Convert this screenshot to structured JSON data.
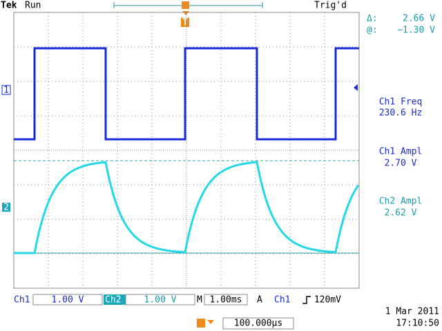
{
  "header": {
    "brand": "Tek",
    "run_state": "Run",
    "trigger_state": "Trig'd",
    "trigger_marker": "T"
  },
  "cursor_readout": {
    "delta_label": "Δ:",
    "delta_value": "2.66 V",
    "at_label": "@:",
    "at_value": "−1.30 V"
  },
  "measurements": [
    {
      "label": "Ch1 Freq",
      "value": "230.6 Hz"
    },
    {
      "label": "Ch1 Ampl",
      "value": "2.70 V"
    },
    {
      "label": "Ch2 Ampl",
      "value": "2.62 V"
    }
  ],
  "channel_markers": [
    "1",
    "2"
  ],
  "footer": {
    "ch1_label": "Ch1",
    "ch1_scale": "1.00 V",
    "ch2_label": "Ch2",
    "ch2_scale": "1.00 V",
    "time_label": "M",
    "time_scale": "1.00ms",
    "trigger_mode": "A",
    "trigger_source": "Ch1",
    "trigger_level": "120mV",
    "trigger_position": "100.000µs",
    "date": "1 Mar 2011",
    "time": "17:10:50"
  }
}
